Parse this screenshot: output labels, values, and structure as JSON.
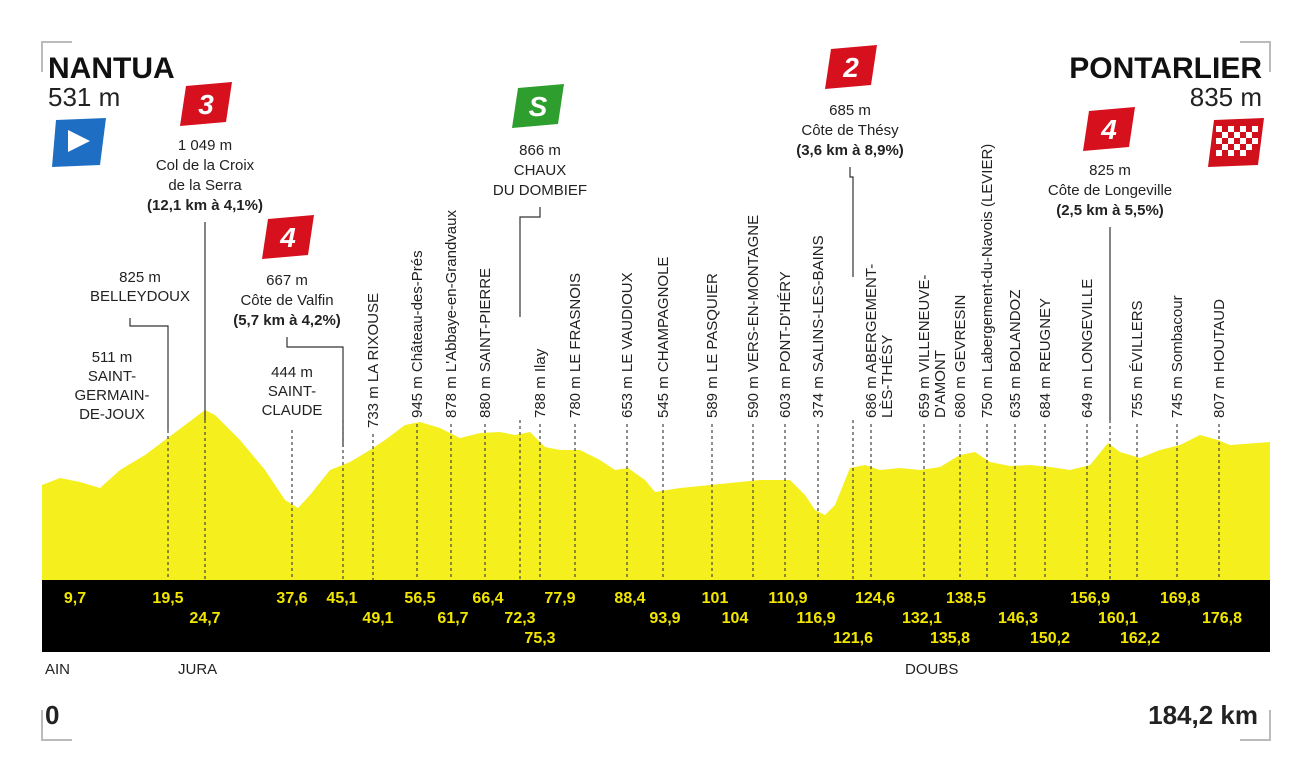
{
  "start": {
    "name": "NANTUA",
    "altitude": "531 m"
  },
  "finish": {
    "name": "PONTARLIER",
    "altitude": "835 m"
  },
  "climbs": [
    {
      "category": "3",
      "lines": [
        "1 049 m",
        "Col de la Croix",
        "de la Serra"
      ],
      "detail": "(12,1 km à 4,1%)"
    },
    {
      "category": "4",
      "lines": [
        "667 m",
        "Côte de Valfin"
      ],
      "detail": "(5,7 km à 4,2%)"
    },
    {
      "category": "S",
      "lines": [
        "866 m",
        "CHAUX",
        "DU DOMBIEF"
      ]
    },
    {
      "category": "2",
      "lines": [
        "685 m",
        "Côte de Thésy"
      ],
      "detail": "(3,6 km à 8,9%)"
    },
    {
      "category": "4",
      "lines": [
        "825 m",
        "Côte de Longeville"
      ],
      "detail": "(2,5 km à 5,5%)"
    }
  ],
  "places": [
    [
      "511 m",
      "SAINT-",
      "GERMAIN-",
      "DE-JOUX"
    ],
    [
      "825 m",
      "BELLEYDOUX"
    ],
    [
      "444 m",
      "SAINT-",
      "CLAUDE"
    ]
  ],
  "waypoints": [
    [
      "733 m LA RIXOUSE"
    ],
    [
      "945 m Château-des-Prés"
    ],
    [
      "878 m L'Abbaye-en-Grandvaux"
    ],
    [
      "880 m SAINT-PIERRE"
    ],
    [
      "788 m Ilay"
    ],
    [
      "780 m LE FRASNOIS"
    ],
    [
      "653 m LE VAUDIOUX"
    ],
    [
      "545 m CHAMPAGNOLE"
    ],
    [
      "589 m LE PASQUIER"
    ],
    [
      "590 m VERS-EN-MONTAGNE"
    ],
    [
      "603 m PONT-D'HÉRY"
    ],
    [
      "374 m SALINS-LES-BAINS"
    ],
    [
      "686 m ABERGEMENT-",
      "LÈS-THÉSY"
    ],
    [
      "659 m VILLENEUVE-",
      "D'AMONT"
    ],
    [
      "680 m GEVRESIN"
    ],
    [
      "750 m Labergement-du-Navois (LEVIER)"
    ],
    [
      "635 m BOLANDOZ"
    ],
    [
      "684 m REUGNEY"
    ],
    [
      "649 m LONGEVILLE"
    ],
    [
      "755 m ÉVILLERS"
    ],
    [
      "745 m Sombacour"
    ],
    [
      "807 m HOUTAUD"
    ]
  ],
  "km_markers": [
    "9,7",
    "19,5",
    "24,7",
    "37,6",
    "45,1",
    "49,1",
    "56,5",
    "61,7",
    "66,4",
    "72,3",
    "75,3",
    "77,9",
    "88,4",
    "93,9",
    "101",
    "104",
    "110,9",
    "116,9",
    "121,6",
    "124,6",
    "132,1",
    "135,8",
    "138,5",
    "146,3",
    "150,2",
    "156,9",
    "160,1",
    "162,2",
    "169,8",
    "176,8"
  ],
  "regions": [
    "AIN",
    "JURA",
    "DOUBS"
  ],
  "distance": {
    "start": "0",
    "end": "184,2 km"
  }
}
